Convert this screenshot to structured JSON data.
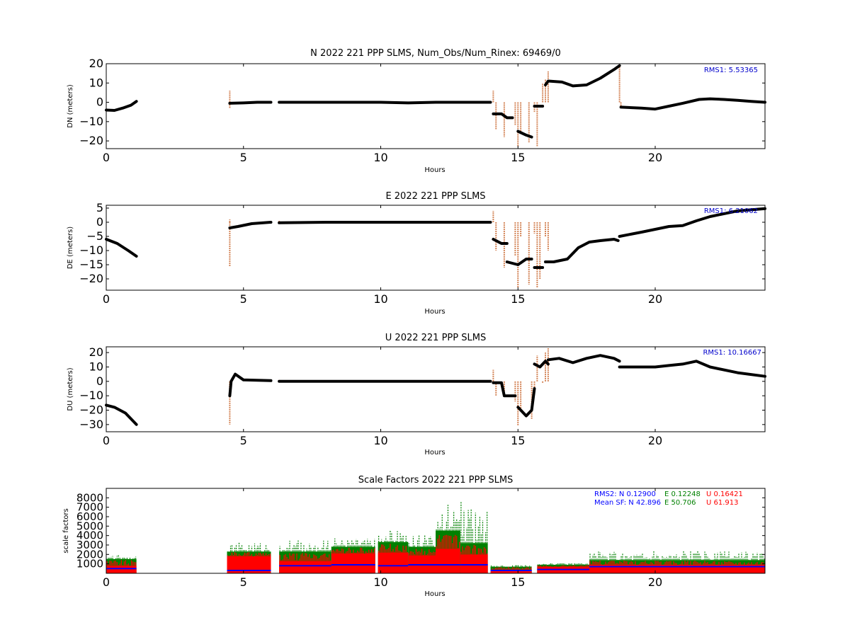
{
  "colors": {
    "spread": "#d4865a",
    "solution": "#000000",
    "rms_text": "#0000cc",
    "sf_n": "#0000ff",
    "sf_e": "#008000",
    "sf_u": "#ff0000"
  },
  "chart_data": [
    {
      "type": "scatter",
      "title": "N 2022 221 PPP  SLMS, Num_Obs/Num_Rinex: 69469/0",
      "xlabel": "Hours",
      "ylabel": "DN (meters)",
      "xlim": [
        0,
        24
      ],
      "ylim": [
        -24,
        20
      ],
      "x_ticks": [
        "0",
        "5",
        "10",
        "15",
        "20"
      ],
      "y_ticks": [
        "20",
        "10",
        "0",
        "−10",
        "−20"
      ],
      "y_tick_values": [
        20,
        10,
        0,
        -10,
        -20
      ],
      "annotation": "RMS1:  5.53365",
      "series": [
        {
          "role": "solution",
          "x": [
            0,
            0.3,
            0.6,
            0.9,
            1.1
          ],
          "y": [
            -4,
            -4.2,
            -3,
            -1.5,
            0.5
          ]
        },
        {
          "role": "solution",
          "x": [
            4.5,
            5,
            5.5,
            6
          ],
          "y": [
            -0.5,
            -0.3,
            0,
            0
          ]
        },
        {
          "role": "solution",
          "x": [
            6.3,
            8,
            10,
            11,
            12,
            14
          ],
          "y": [
            0,
            0,
            0,
            -0.3,
            0,
            0
          ]
        },
        {
          "role": "solution",
          "x": [
            14.1,
            14.4,
            14.6,
            14.8
          ],
          "y": [
            -6,
            -6,
            -8,
            -8
          ]
        },
        {
          "role": "solution",
          "x": [
            15,
            15.3,
            15.5
          ],
          "y": [
            -15,
            -17,
            -18
          ]
        },
        {
          "role": "solution",
          "x": [
            15.6,
            15.9
          ],
          "y": [
            -2,
            -2
          ]
        },
        {
          "role": "solution",
          "x": [
            16,
            16.1,
            16.6,
            17,
            17.5,
            18,
            18.5,
            18.7
          ],
          "y": [
            9,
            11,
            10.5,
            8.5,
            9,
            12.5,
            17,
            19
          ]
        },
        {
          "role": "solution",
          "x": [
            18.75,
            19.5,
            20,
            20.5,
            21,
            21.6,
            22,
            22.5,
            23,
            23.5,
            24
          ],
          "y": [
            -2.5,
            -3,
            -3.5,
            -2,
            -0.5,
            1.5,
            1.8,
            1.5,
            1,
            0.5,
            0
          ]
        },
        {
          "role": "spread",
          "x": [
            4.5,
            4.5,
            6.3,
            14.1,
            14.2,
            14.5,
            14.9,
            15.0,
            15.1,
            15.4,
            15.6,
            15.7,
            15.9,
            16.0,
            16.1,
            18.7,
            18.75
          ],
          "y": [
            6,
            -3,
            1,
            6,
            -14,
            -18,
            -12,
            -23,
            -16,
            -21,
            -5,
            -23,
            10,
            12,
            16,
            19,
            -3
          ]
        }
      ]
    },
    {
      "type": "scatter",
      "title": "E 2022 221 PPP  SLMS",
      "xlabel": "Hours",
      "ylabel": "DE (meters)",
      "xlim": [
        0,
        24
      ],
      "ylim": [
        -24,
        6
      ],
      "x_ticks": [
        "0",
        "5",
        "10",
        "15",
        "20"
      ],
      "y_ticks": [
        "5",
        "0",
        "−5",
        "−10",
        "−15",
        "−20"
      ],
      "y_tick_values": [
        5,
        0,
        -5,
        -10,
        -15,
        -20
      ],
      "annotation": "RMS1:  6.21062",
      "series": [
        {
          "role": "solution",
          "x": [
            0,
            0.4,
            0.8,
            1.1
          ],
          "y": [
            -6,
            -7.5,
            -10,
            -12
          ]
        },
        {
          "role": "solution",
          "x": [
            4.5,
            4.8,
            5.3,
            6
          ],
          "y": [
            -2,
            -1.5,
            -0.5,
            0
          ]
        },
        {
          "role": "solution",
          "x": [
            6.3,
            8,
            10,
            12,
            14
          ],
          "y": [
            -0.2,
            0,
            0,
            0,
            0
          ]
        },
        {
          "role": "solution",
          "x": [
            14.1,
            14.4,
            14.6
          ],
          "y": [
            -6,
            -7.5,
            -7.5
          ]
        },
        {
          "role": "solution",
          "x": [
            14.6,
            15,
            15.3,
            15.5
          ],
          "y": [
            -14,
            -15,
            -13,
            -13
          ]
        },
        {
          "role": "solution",
          "x": [
            15.6,
            15.9
          ],
          "y": [
            -16,
            -16
          ]
        },
        {
          "role": "solution",
          "x": [
            16,
            16.3,
            16.8,
            17.2,
            17.6,
            18,
            18.5,
            18.65
          ],
          "y": [
            -14,
            -14,
            -13,
            -9,
            -7,
            -6.5,
            -6,
            -6.5
          ]
        },
        {
          "role": "solution",
          "x": [
            18.7,
            19.5,
            20.5,
            21,
            21.5,
            22,
            23,
            24
          ],
          "y": [
            -5,
            -3.5,
            -1.5,
            -1.2,
            0.5,
            2,
            4,
            4.8
          ]
        },
        {
          "role": "spread",
          "x": [
            4.5,
            4.5,
            6.3,
            14.1,
            14.2,
            14.5,
            14.9,
            15.0,
            15.1,
            15.4,
            15.6,
            15.7,
            15.8,
            16.0,
            16.1
          ],
          "y": [
            1,
            -15.5,
            0.5,
            4,
            -10,
            -16,
            -12,
            -23,
            -5,
            -22,
            -4,
            -23,
            -20,
            -5,
            -10
          ]
        }
      ]
    },
    {
      "type": "scatter",
      "title": "U 2022 221 PPP  SLMS",
      "xlabel": "Hours",
      "ylabel": "DU (meters)",
      "xlim": [
        0,
        24
      ],
      "ylim": [
        -35,
        24
      ],
      "x_ticks": [
        "0",
        "5",
        "10",
        "15",
        "20"
      ],
      "y_ticks": [
        "20",
        "10",
        "0",
        "−10",
        "−20",
        "−30"
      ],
      "y_tick_values": [
        20,
        10,
        0,
        -10,
        -20,
        -30
      ],
      "annotation": "RMS1: 10.16667",
      "series": [
        {
          "role": "solution",
          "x": [
            0,
            0.3,
            0.7,
            1.1
          ],
          "y": [
            -16.5,
            -18,
            -22,
            -30
          ]
        },
        {
          "role": "solution",
          "x": [
            4.5,
            4.55,
            4.7,
            5,
            6
          ],
          "y": [
            -10,
            0,
            5,
            1,
            0.5
          ]
        },
        {
          "role": "solution",
          "x": [
            6.3,
            8,
            10,
            12,
            14
          ],
          "y": [
            0,
            0,
            0,
            0,
            0
          ]
        },
        {
          "role": "solution",
          "x": [
            14.1,
            14.4,
            14.5,
            14.9
          ],
          "y": [
            -1,
            -1,
            -10,
            -10
          ]
        },
        {
          "role": "solution",
          "x": [
            15,
            15.3,
            15.5,
            15.6
          ],
          "y": [
            -18,
            -24,
            -20,
            -5
          ]
        },
        {
          "role": "solution",
          "x": [
            15.6,
            15.8,
            16,
            16.1
          ],
          "y": [
            12,
            10,
            14,
            12
          ]
        },
        {
          "role": "solution",
          "x": [
            16.1,
            16.5,
            17,
            17.5,
            18,
            18.5,
            18.7
          ],
          "y": [
            15,
            16,
            13,
            16,
            18,
            16,
            14
          ]
        },
        {
          "role": "solution",
          "x": [
            18.7,
            19.5,
            20,
            20.5,
            21,
            21.5,
            22,
            23,
            24
          ],
          "y": [
            10,
            10,
            10,
            11,
            12,
            14,
            10,
            6,
            3.5
          ]
        },
        {
          "role": "spread",
          "x": [
            4.5,
            4.5,
            6.3,
            14.1,
            14.2,
            14.5,
            14.9,
            15.0,
            15.1,
            15.5,
            15.6,
            15.7,
            15.9,
            16.0,
            16.1
          ],
          "y": [
            -5,
            -30,
            1,
            8,
            -10,
            -10,
            -14,
            -31,
            -20,
            -26,
            -5,
            18,
            -1,
            20,
            23
          ]
        }
      ]
    },
    {
      "type": "scatter",
      "title": "Scale Factors 2022 221 PPP  SLMS",
      "xlabel": "Hours",
      "ylabel": "scale factors",
      "xlim": [
        0,
        24
      ],
      "ylim": [
        0,
        9000
      ],
      "x_ticks": [
        "0",
        "5",
        "10",
        "15",
        "20"
      ],
      "y_ticks": [
        "8000",
        "7000",
        "6000",
        "5000",
        "4000",
        "3000",
        "2000",
        "1000"
      ],
      "y_tick_values": [
        8000,
        7000,
        6000,
        5000,
        4000,
        3000,
        2000,
        1000
      ],
      "rms2_label": "RMS2: N  0.12900",
      "rms2_e": "E  0.12248",
      "rms2_u": "U  0.16421",
      "meansf_label": "Mean SF: N  42.896",
      "meansf_e": "E  50.706",
      "meansf_u": "U  61.913",
      "segments": [
        {
          "x": [
            0,
            1.1
          ],
          "n": 500,
          "u": 800,
          "e": 1500
        },
        {
          "x": [
            4.4,
            6.0
          ],
          "n": 300,
          "u": 1800,
          "e": 2300,
          "peak_e": 3300
        },
        {
          "x": [
            6.3,
            8.2
          ],
          "n": 800,
          "u": 1300,
          "e": 2300,
          "peak_e": 3500
        },
        {
          "x": [
            8.2,
            9.8
          ],
          "n": 900,
          "u": 2100,
          "e": 2800,
          "peak_e": 3700
        },
        {
          "x": [
            9.9,
            11.0
          ],
          "n": 800,
          "u": 2200,
          "e": 3300,
          "peak_e": 4600
        },
        {
          "x": [
            11.0,
            12.0
          ],
          "n": 900,
          "u": 1900,
          "e": 2800,
          "peak_e": 4100
        },
        {
          "x": [
            12.0,
            12.9
          ],
          "n": 900,
          "u": 2600,
          "e": 4500,
          "peak_e": 7300
        },
        {
          "x": [
            12.9,
            13.9
          ],
          "n": 900,
          "u": 2000,
          "e": 3200,
          "peak_e": 7700
        },
        {
          "x": [
            14.0,
            15.5
          ],
          "n": 300,
          "u": 400,
          "e": 700
        },
        {
          "x": [
            15.7,
            17.6
          ],
          "n": 400,
          "u": 700,
          "e": 900
        },
        {
          "x": [
            17.6,
            24.0
          ],
          "n": 700,
          "u": 900,
          "e": 1400,
          "peak_e": 2400
        }
      ]
    }
  ]
}
